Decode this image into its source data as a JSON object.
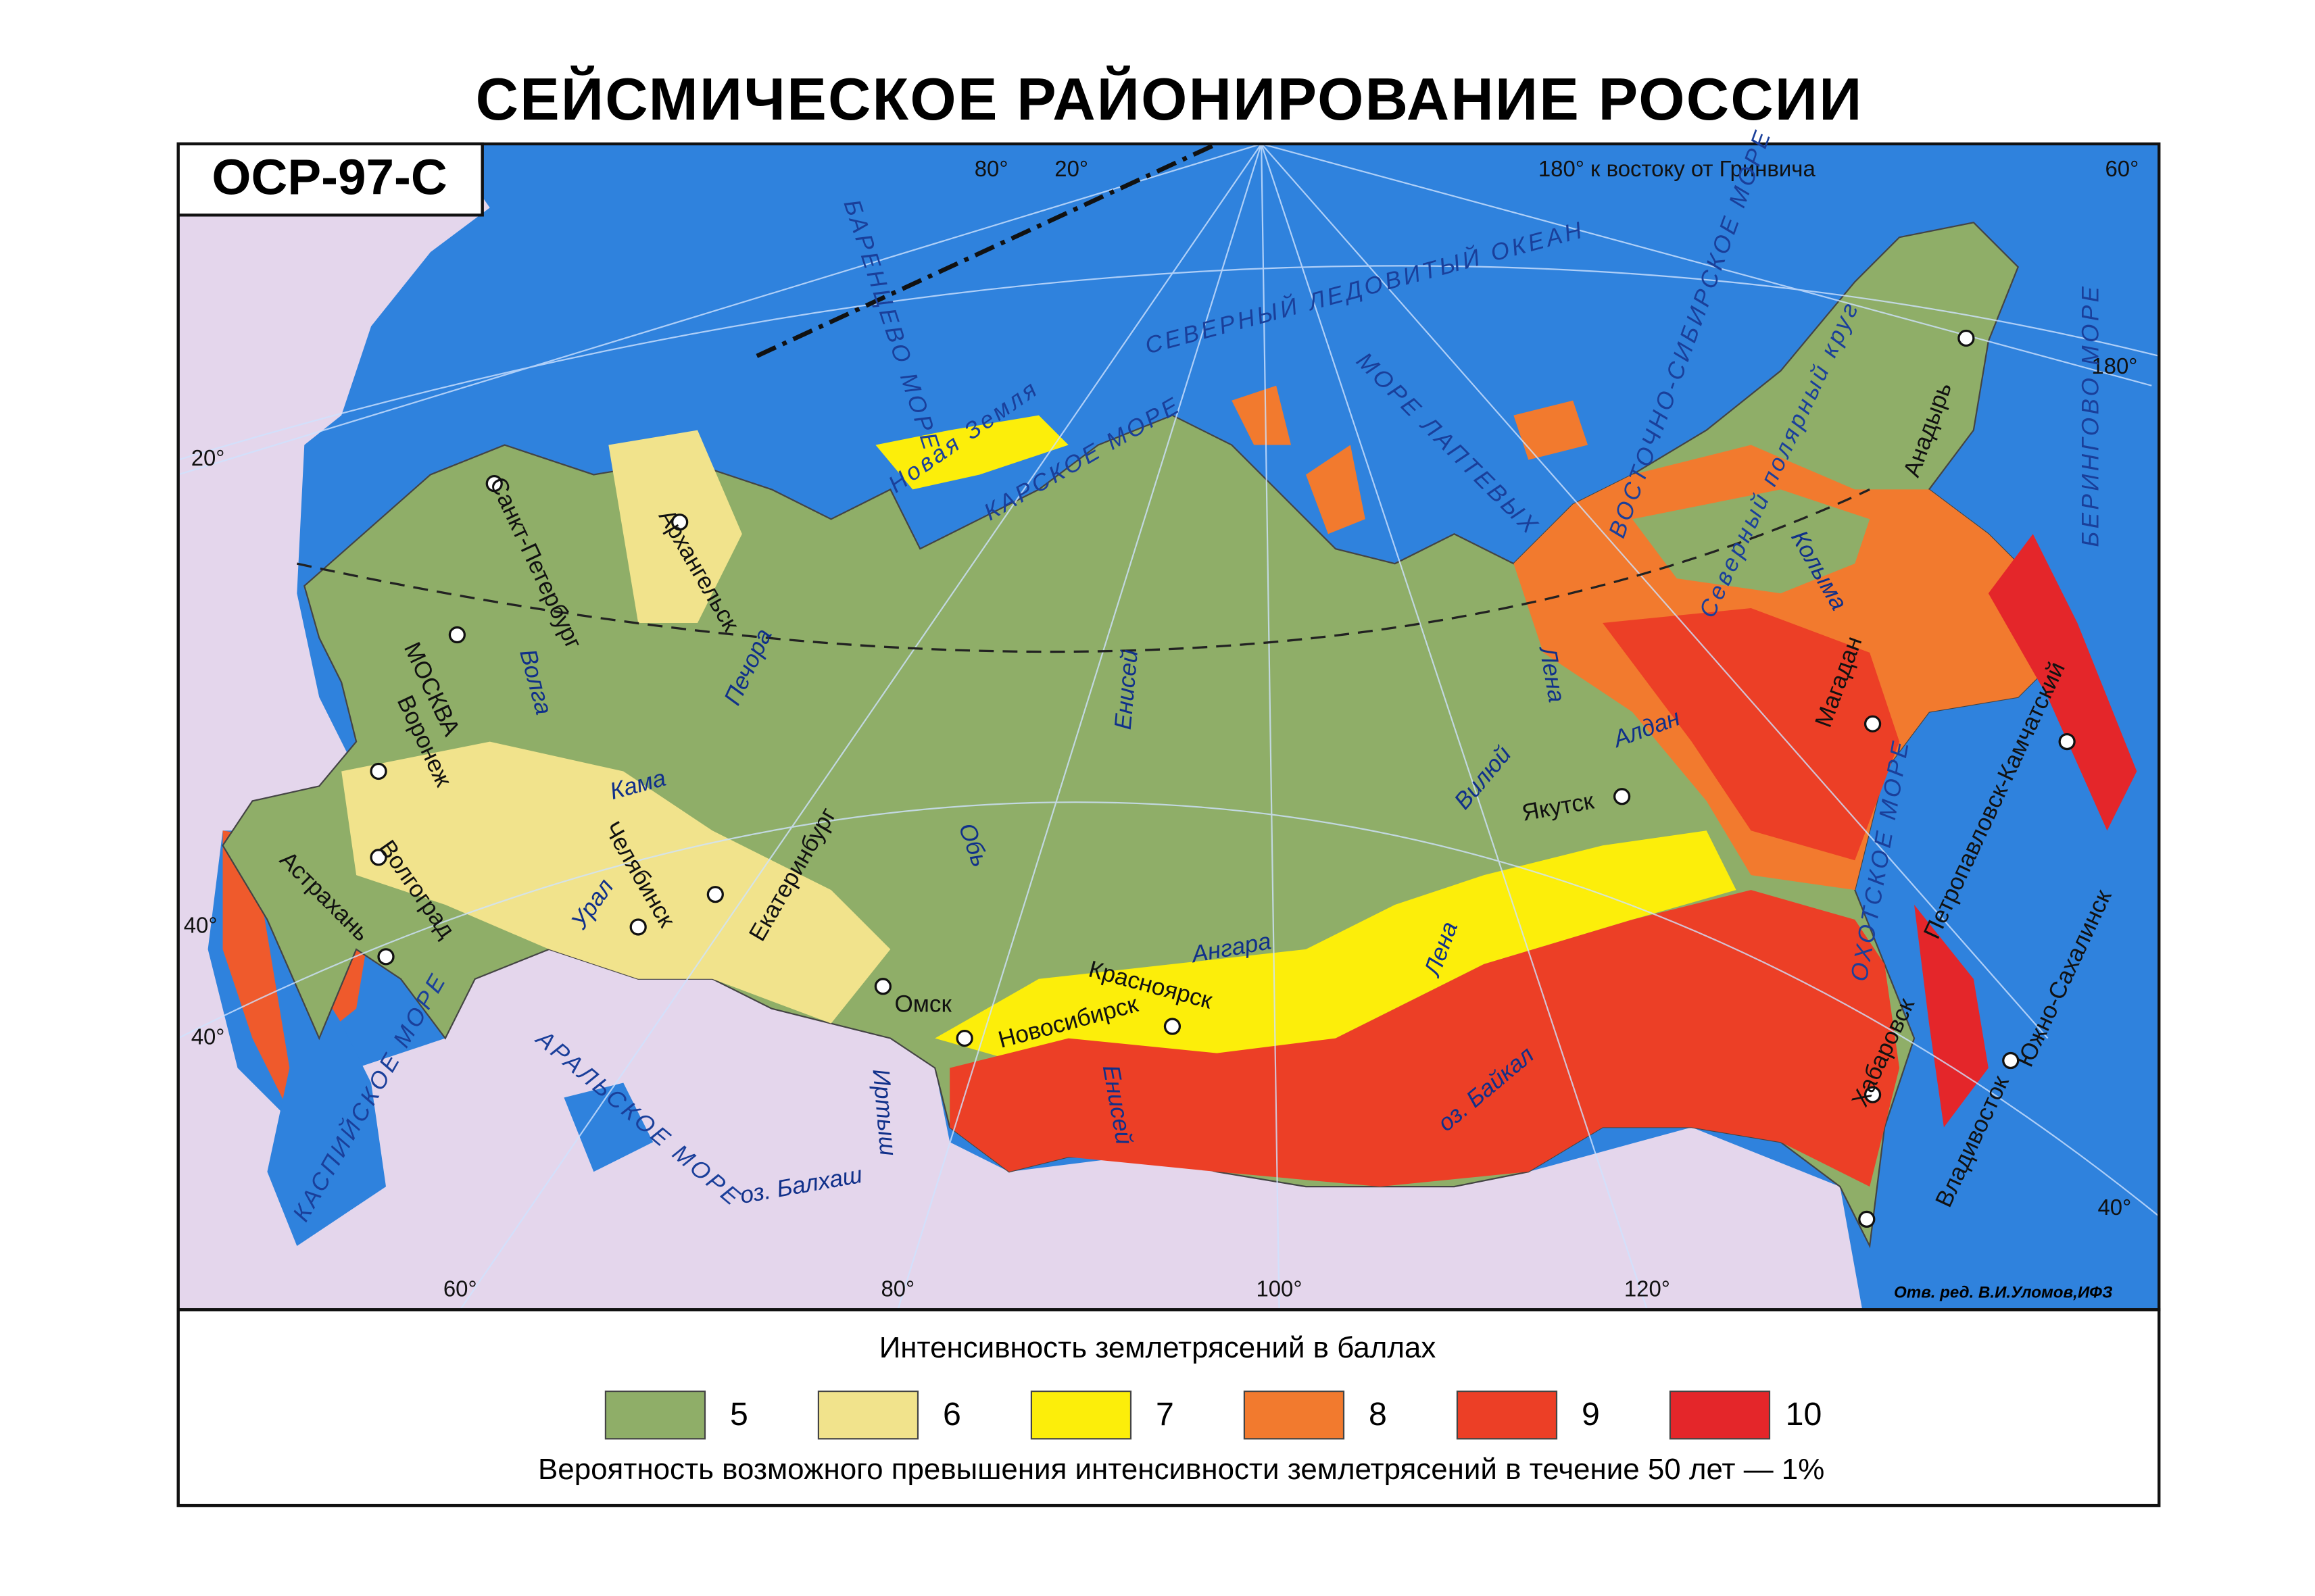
{
  "header": {
    "title": "СЕЙСМИЧЕСКОЕ РАЙОНИРОВАНИЕ РОССИИ",
    "badge": "ОСР-97-С"
  },
  "map": {
    "grid_labels": [
      "80°",
      "20°",
      "180° к востоку от Гринвича",
      "60°",
      "180°",
      "20°",
      "40°",
      "40°",
      "40°",
      "60°",
      "80°",
      "100°",
      "120°"
    ],
    "seas": [
      "БАРЕНЦЕВО МОРЕ",
      "СЕВЕРНЫЙ ЛЕДОВИТЫЙ ОКЕАН",
      "КАРСКОЕ МОРЕ",
      "МОРЕ ЛАПТЕВЫХ",
      "ВОСТОЧНО-СИБИРСКОЕ МОРЕ",
      "БЕРИНГОВО МОРЕ",
      "ОХОТСКОЕ МОРЕ",
      "КАСПИЙСКОЕ МОРЕ",
      "АРАЛЬСКОЕ МОРЕ",
      "Новая Земля",
      "Северный полярный круг"
    ],
    "cities": [
      "Санкт-Петербург",
      "Архангельск",
      "МОСКВА",
      "Воронеж",
      "Волгоград",
      "Астрахань",
      "Челябинск",
      "Екатеринбург",
      "Омск",
      "Новосибирск",
      "Красноярск",
      "Якутск",
      "Магадан",
      "Анадырь",
      "Петропавловск-Камчатский",
      "Южно-Сахалинск",
      "Хабаровск",
      "Владивосток"
    ],
    "rivers": [
      "Волга",
      "Кама",
      "Печора",
      "Урал",
      "Обь",
      "Енисей",
      "Иртыш",
      "Ангара",
      "Лена",
      "Лена",
      "Вилюй",
      "Алдан",
      "Колыма",
      "Енисей"
    ],
    "lakes": [
      "оз. Байкал",
      "оз. Балхаш"
    ],
    "credit": "Отв. ред. В.И.Уломов,ИФЗ"
  },
  "legend": {
    "title": "Интенсивность землетрясений в баллах",
    "items": [
      {
        "label": "5",
        "color": "#8fae68"
      },
      {
        "label": "6",
        "color": "#f1e38c"
      },
      {
        "label": "7",
        "color": "#fcee0a"
      },
      {
        "label": "8",
        "color": "#f27a2e"
      },
      {
        "label": "9",
        "color": "#ec3f26"
      },
      {
        "label": "10",
        "color": "#e4262a"
      }
    ],
    "note": "Вероятность возможного превышения интенсивности землетрясений в течение 50 лет — 1%"
  }
}
